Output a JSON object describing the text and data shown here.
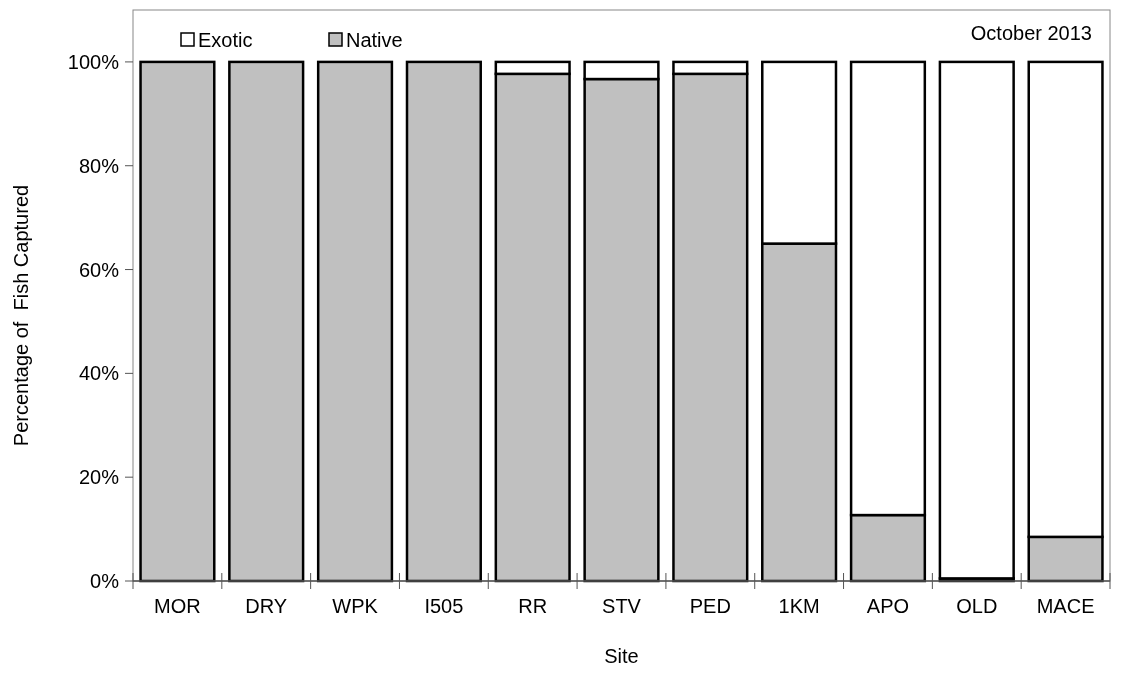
{
  "chart_data": {
    "type": "bar",
    "stacked": true,
    "xlabel": "Site",
    "ylabel": "Percentage of  Fish Captured",
    "categories": [
      "MOR",
      "DRY",
      "WPK",
      "I505",
      "RR",
      "STV",
      "PED",
      "1KM",
      "APO",
      "OLD",
      "MACE"
    ],
    "series": [
      {
        "name": "Native",
        "color": "#c0c0c0",
        "values": [
          100,
          100,
          100,
          100,
          97.7,
          96.7,
          97.7,
          65,
          12.7,
          0.5,
          8.5
        ]
      },
      {
        "name": "Exotic",
        "color": "#ffffff",
        "values": [
          0,
          0,
          0,
          0,
          2.3,
          3.3,
          2.3,
          35,
          87.3,
          99.5,
          91.5
        ]
      }
    ],
    "ylim": [
      0,
      110
    ],
    "yticks": [
      {
        "value": 0,
        "label": "0%"
      },
      {
        "value": 20,
        "label": "20%"
      },
      {
        "value": 40,
        "label": "40%"
      },
      {
        "value": 60,
        "label": "60%"
      },
      {
        "value": 80,
        "label": "80%"
      },
      {
        "value": 100,
        "label": "100%"
      }
    ],
    "grid": false,
    "legend": "top left",
    "annotations": [
      "October 2013"
    ]
  }
}
